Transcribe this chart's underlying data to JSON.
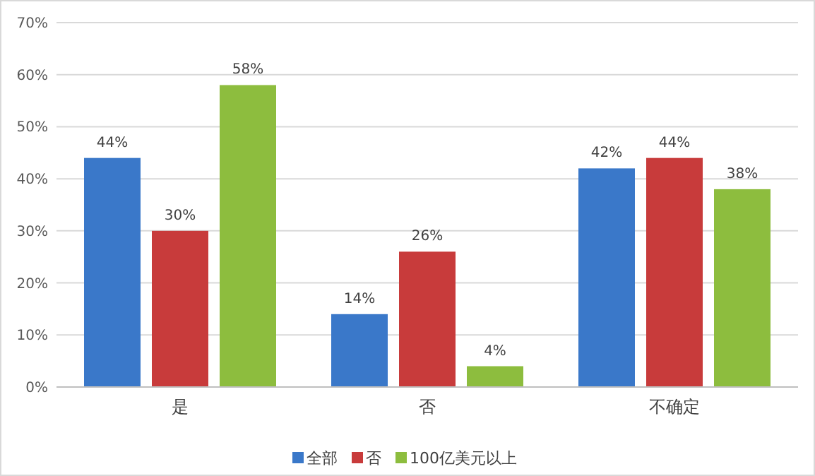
{
  "chart_data": {
    "type": "bar",
    "categories": [
      "是",
      "否",
      "不确定"
    ],
    "series": [
      {
        "name": "全部",
        "color": "#3a78c9",
        "values": [
          44,
          14,
          42
        ],
        "value_labels": [
          "44%",
          "14%",
          "42%"
        ]
      },
      {
        "name": "否",
        "color": "#c83b3b",
        "values": [
          30,
          26,
          44
        ],
        "value_labels": [
          "30%",
          "26%",
          "44%"
        ]
      },
      {
        "name": "100亿美元以上",
        "color": "#8dbd3e",
        "values": [
          58,
          4,
          38
        ],
        "value_labels": [
          "58%",
          "4%",
          "38%"
        ]
      }
    ],
    "ylim": [
      0,
      70
    ],
    "yticks": [
      {
        "value": 0,
        "label": "0%"
      },
      {
        "value": 10,
        "label": "10%"
      },
      {
        "value": 20,
        "label": "20%"
      },
      {
        "value": 30,
        "label": "30%"
      },
      {
        "value": 40,
        "label": "40%"
      },
      {
        "value": 50,
        "label": "50%"
      },
      {
        "value": 60,
        "label": "60%"
      },
      {
        "value": 70,
        "label": "70%"
      }
    ],
    "grid": "y",
    "legend": "bottom"
  }
}
